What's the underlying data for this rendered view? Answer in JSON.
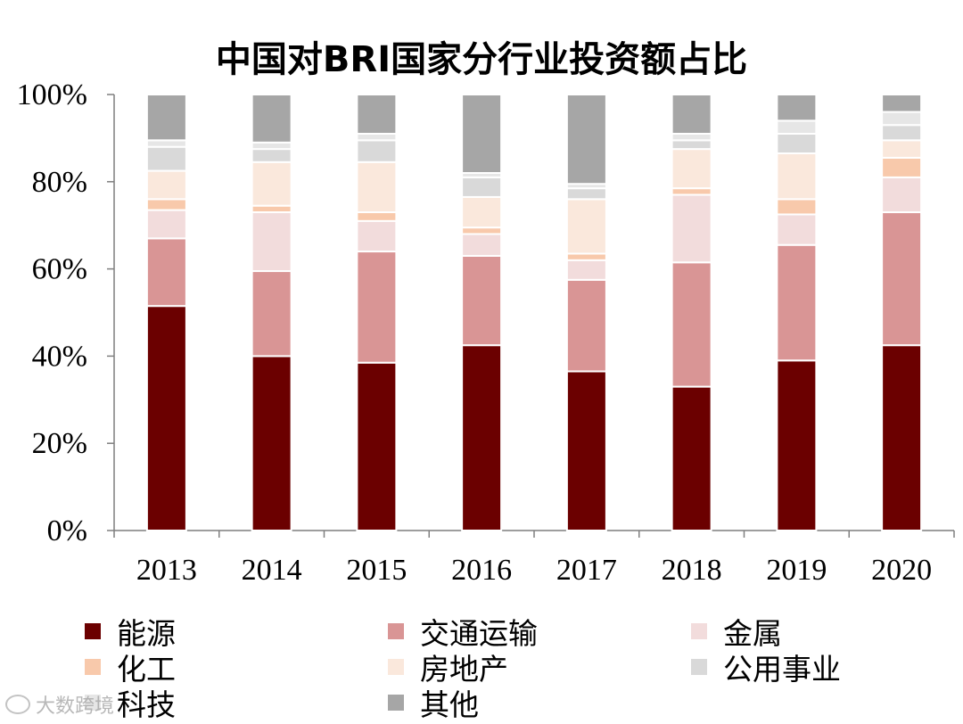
{
  "chart_data": {
    "type": "bar",
    "stacked": true,
    "title": "中国对BRI国家分行业投资额占比",
    "xlabel": "",
    "ylabel": "",
    "ylim": [
      0,
      100
    ],
    "yticks": [
      "0%",
      "20%",
      "40%",
      "60%",
      "80%",
      "100%"
    ],
    "categories": [
      "2013",
      "2014",
      "2015",
      "2016",
      "2017",
      "2018",
      "2019",
      "2020"
    ],
    "series": [
      {
        "name": "能源",
        "color": "#6b0000",
        "values": [
          51.5,
          40.0,
          38.5,
          42.5,
          36.5,
          33.0,
          39.0,
          42.5
        ]
      },
      {
        "name": "交通运输",
        "color": "#d99595",
        "values": [
          15.5,
          19.5,
          25.5,
          20.5,
          21.0,
          28.5,
          26.5,
          30.5
        ]
      },
      {
        "name": "金属",
        "color": "#f2dcdc",
        "values": [
          6.5,
          13.5,
          7.0,
          5.0,
          4.5,
          15.5,
          7.0,
          8.0
        ]
      },
      {
        "name": "化工",
        "color": "#f8c9ab",
        "values": [
          2.5,
          1.5,
          2.0,
          1.5,
          1.5,
          1.5,
          3.5,
          4.5
        ]
      },
      {
        "name": "房地产",
        "color": "#fae8dc",
        "values": [
          6.5,
          10.0,
          11.5,
          7.0,
          12.5,
          9.0,
          10.5,
          4.0
        ]
      },
      {
        "name": "公用事业",
        "color": "#d9d9d9",
        "values": [
          5.5,
          3.0,
          5.0,
          4.5,
          2.5,
          2.0,
          4.5,
          3.5
        ]
      },
      {
        "name": "科技",
        "color": "#e6e6e6",
        "values": [
          1.5,
          1.5,
          1.5,
          1.0,
          1.0,
          1.5,
          3.0,
          3.0
        ]
      },
      {
        "name": "其他",
        "color": "#a6a6a6",
        "values": [
          10.5,
          11.0,
          9.0,
          18.0,
          20.5,
          9.0,
          6.0,
          4.0
        ]
      }
    ],
    "legend_position": "bottom",
    "grid": false
  },
  "watermark": {
    "text": "大数跨境"
  }
}
